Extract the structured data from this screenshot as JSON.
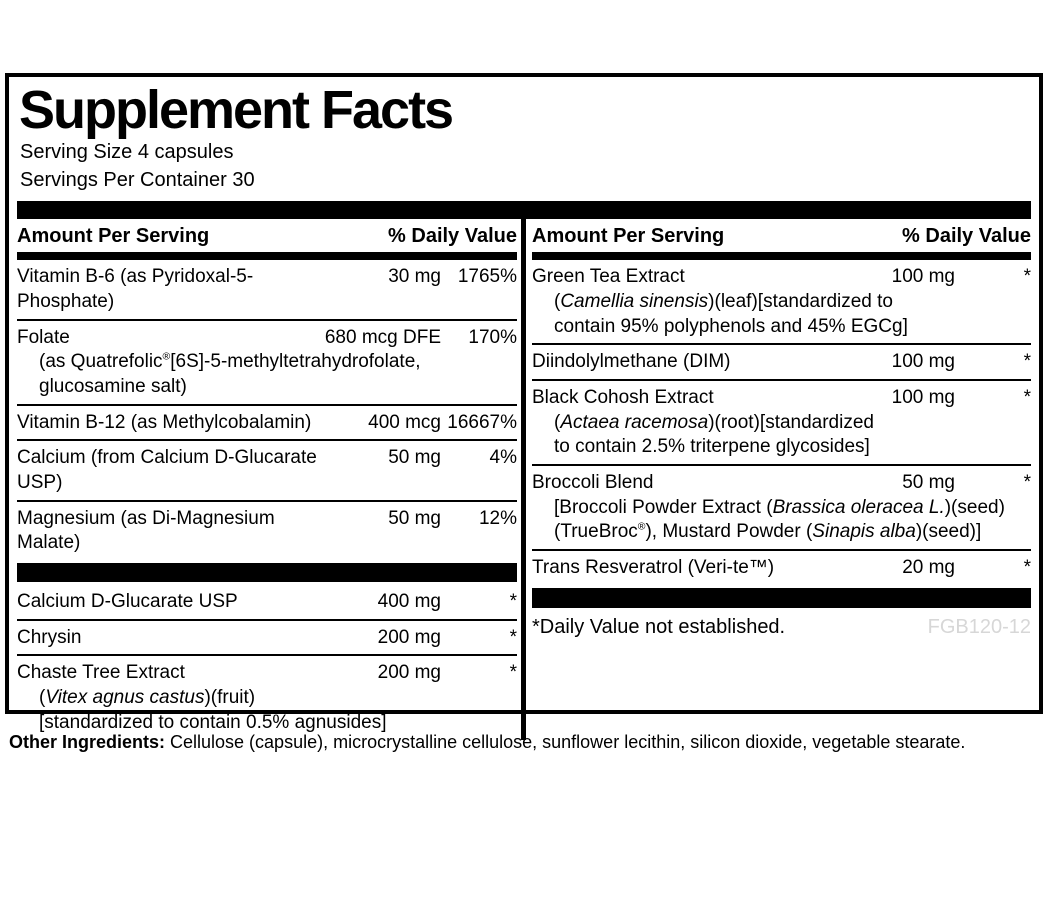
{
  "panel": {
    "title": "Supplement Facts",
    "serving_size": "Serving Size 4 capsules",
    "servings_per_container": "Servings Per Container 30",
    "column_header": {
      "amount_label": "Amount Per Serving",
      "dv_label": "% Daily Value"
    },
    "left_rows": [
      {
        "name": "Vitamin B-6 (as Pyridoxal-5-Phosphate)",
        "amount": "30 mg",
        "dv": "1765%"
      },
      {
        "name": "Folate",
        "amount": "680 mcg DFE",
        "dv": "170%",
        "sublines": [
          [
            {
              "t": "(as Quatrefolic"
            },
            {
              "t": "®",
              "sup": true
            },
            {
              "t": "[6S]-5-methyltetrahydrofolate,"
            }
          ],
          [
            {
              "t": "glucosamine salt)"
            }
          ]
        ]
      },
      {
        "name": "Vitamin B-12 (as Methylcobalamin)",
        "amount": "400 mcg",
        "dv": "16667%"
      },
      {
        "name": "Calcium (from Calcium D-Glucarate USP)",
        "amount": "50 mg",
        "dv": "4%"
      },
      {
        "name": "Magnesium (as Di-Magnesium Malate)",
        "amount": "50 mg",
        "dv": "12%"
      },
      {
        "bar": true
      },
      {
        "name": "Calcium D-Glucarate USP",
        "amount": "400 mg",
        "dv": "*"
      },
      {
        "name": "Chrysin",
        "amount": "200 mg",
        "dv": "*"
      },
      {
        "name": "Chaste Tree Extract",
        "amount": "200 mg",
        "dv": "*",
        "sublines": [
          [
            {
              "t": "("
            },
            {
              "t": "Vitex agnus castus",
              "i": true
            },
            {
              "t": ")(fruit)"
            }
          ],
          [
            {
              "t": "[standardized to contain 0.5% agnusides]"
            }
          ]
        ]
      }
    ],
    "right_rows": [
      {
        "name": "Green Tea Extract",
        "amount": "100 mg",
        "dv": "*",
        "sublines": [
          [
            {
              "t": "("
            },
            {
              "t": "Camellia sinensis",
              "i": true
            },
            {
              "t": ")(leaf)[standardized to"
            }
          ],
          [
            {
              "t": "contain 95% polyphenols and 45% EGCg]"
            }
          ]
        ]
      },
      {
        "name": "Diindolylmethane (DIM)",
        "amount": "100 mg",
        "dv": "*"
      },
      {
        "name": "Black Cohosh Extract",
        "amount": "100 mg",
        "dv": "*",
        "sublines": [
          [
            {
              "t": "("
            },
            {
              "t": "Actaea racemosa",
              "i": true
            },
            {
              "t": ")(root)[standardized"
            }
          ],
          [
            {
              "t": "to contain 2.5% triterpene glycosides]"
            }
          ]
        ]
      },
      {
        "name": "Broccoli Blend",
        "amount": "50 mg",
        "dv": "*",
        "sublines": [
          [
            {
              "t": "[Broccoli Powder Extract ("
            },
            {
              "t": "Brassica oleracea L.",
              "i": true
            },
            {
              "t": ")(seed)"
            }
          ],
          [
            {
              "t": "(TrueBroc"
            },
            {
              "t": "®",
              "sup": true
            },
            {
              "t": "), Mustard Powder ("
            },
            {
              "t": "Sinapis alba",
              "i": true
            },
            {
              "t": ")(seed)]"
            }
          ]
        ]
      },
      {
        "name": "Trans Resveratrol (Veri-te™)",
        "amount": "20 mg",
        "dv": "*"
      }
    ],
    "footnote": "*Daily Value not established.",
    "product_code": "FGB120-12"
  },
  "other_ingredients": {
    "label": "Other Ingredients:",
    "text": " Cellulose (capsule), microcrystalline cellulose, sunflower lecithin, silicon dioxide, vegetable stearate."
  },
  "colors": {
    "ink": "#000000",
    "product_code_gray": "#d7d7d7",
    "background": "#ffffff"
  }
}
